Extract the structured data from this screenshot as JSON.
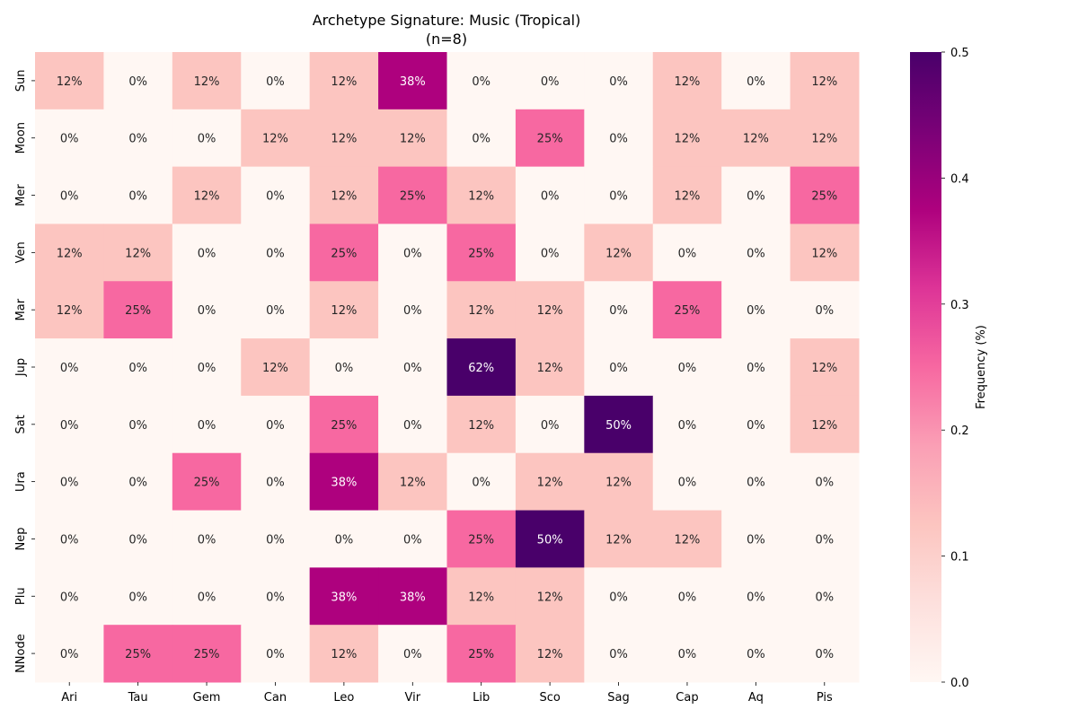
{
  "chart_data": {
    "type": "heatmap",
    "title": "Archetype Signature: Music (Tropical)",
    "subtitle": "(n=8)",
    "xlabel": "",
    "ylabel": "",
    "x_categories": [
      "Ari",
      "Tau",
      "Gem",
      "Can",
      "Leo",
      "Vir",
      "Lib",
      "Sco",
      "Sag",
      "Cap",
      "Aq",
      "Pis"
    ],
    "y_categories": [
      "Sun",
      "Moon",
      "Mer",
      "Ven",
      "Mar",
      "Jup",
      "Sat",
      "Ura",
      "Nep",
      "Plu",
      "NNode"
    ],
    "values": [
      [
        0.125,
        0,
        0.125,
        0,
        0.125,
        0.375,
        0,
        0,
        0,
        0.125,
        0,
        0.125
      ],
      [
        0,
        0,
        0,
        0.125,
        0.125,
        0.125,
        0,
        0.25,
        0,
        0.125,
        0.125,
        0.125
      ],
      [
        0,
        0,
        0.125,
        0,
        0.125,
        0.25,
        0.125,
        0,
        0,
        0.125,
        0,
        0.25
      ],
      [
        0.125,
        0.125,
        0,
        0,
        0.25,
        0,
        0.25,
        0,
        0.125,
        0,
        0,
        0.125
      ],
      [
        0.125,
        0.25,
        0,
        0,
        0.125,
        0,
        0.125,
        0.125,
        0,
        0.25,
        0,
        0
      ],
      [
        0,
        0,
        0,
        0.125,
        0,
        0,
        0.625,
        0.125,
        0,
        0,
        0,
        0.125
      ],
      [
        0,
        0,
        0,
        0,
        0.25,
        0,
        0.125,
        0,
        0.5,
        0,
        0,
        0.125
      ],
      [
        0,
        0,
        0.25,
        0,
        0.375,
        0.125,
        0,
        0.125,
        0.125,
        0,
        0,
        0
      ],
      [
        0,
        0,
        0,
        0,
        0,
        0,
        0.25,
        0.5,
        0.125,
        0.125,
        0,
        0
      ],
      [
        0,
        0,
        0,
        0,
        0.375,
        0.375,
        0.125,
        0.125,
        0,
        0,
        0,
        0
      ],
      [
        0,
        0.25,
        0.25,
        0,
        0.125,
        0,
        0.25,
        0.125,
        0,
        0,
        0,
        0
      ]
    ],
    "annotations": [
      [
        "12%",
        "0%",
        "12%",
        "0%",
        "12%",
        "38%",
        "0%",
        "0%",
        "0%",
        "12%",
        "0%",
        "12%"
      ],
      [
        "0%",
        "0%",
        "0%",
        "12%",
        "12%",
        "12%",
        "0%",
        "25%",
        "0%",
        "12%",
        "12%",
        "12%"
      ],
      [
        "0%",
        "0%",
        "12%",
        "0%",
        "12%",
        "25%",
        "12%",
        "0%",
        "0%",
        "12%",
        "0%",
        "25%"
      ],
      [
        "12%",
        "12%",
        "0%",
        "0%",
        "25%",
        "0%",
        "25%",
        "0%",
        "12%",
        "0%",
        "0%",
        "12%"
      ],
      [
        "12%",
        "25%",
        "0%",
        "0%",
        "12%",
        "0%",
        "12%",
        "12%",
        "0%",
        "25%",
        "0%",
        "0%"
      ],
      [
        "0%",
        "0%",
        "0%",
        "12%",
        "0%",
        "0%",
        "62%",
        "12%",
        "0%",
        "0%",
        "0%",
        "12%"
      ],
      [
        "0%",
        "0%",
        "0%",
        "0%",
        "25%",
        "0%",
        "12%",
        "0%",
        "50%",
        "0%",
        "0%",
        "12%"
      ],
      [
        "0%",
        "0%",
        "25%",
        "0%",
        "38%",
        "12%",
        "0%",
        "12%",
        "12%",
        "0%",
        "0%",
        "0%"
      ],
      [
        "0%",
        "0%",
        "0%",
        "0%",
        "0%",
        "0%",
        "25%",
        "50%",
        "12%",
        "12%",
        "0%",
        "0%"
      ],
      [
        "0%",
        "0%",
        "0%",
        "0%",
        "38%",
        "38%",
        "12%",
        "12%",
        "0%",
        "0%",
        "0%",
        "0%"
      ],
      [
        "0%",
        "25%",
        "25%",
        "0%",
        "12%",
        "0%",
        "25%",
        "12%",
        "0%",
        "0%",
        "0%",
        "0%"
      ]
    ],
    "colormap": "RdPu",
    "vmin": 0.0,
    "vmax": 0.5,
    "colorbar": {
      "label": "Frequency (%)",
      "ticks": [
        0.0,
        0.1,
        0.2,
        0.3,
        0.4,
        0.5
      ],
      "tick_labels": [
        "0.0",
        "0.1",
        "0.2",
        "0.3",
        "0.4",
        "0.5"
      ],
      "placement": "right"
    },
    "colormap_stops": [
      "#fff7f3",
      "#fde0dd",
      "#fcc5c0",
      "#fa9fb5",
      "#f768a1",
      "#dd3497",
      "#ae017e",
      "#7a0177",
      "#49006a"
    ],
    "grid": false,
    "legend": "none"
  }
}
